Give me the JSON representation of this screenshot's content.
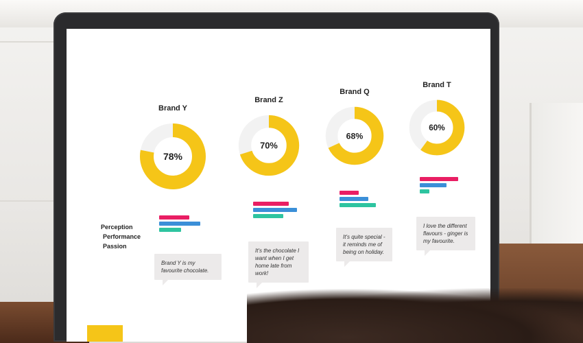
{
  "colors": {
    "accent": "#f5c518",
    "track": "#f2f2f2",
    "perception": "#e91e63",
    "performance": "#3b8fd8",
    "passion": "#2ec4a0"
  },
  "legend": [
    "Perception",
    "Performance",
    "Passion"
  ],
  "brands": [
    {
      "name": "Brand Y",
      "percent_label": "78%",
      "percent": 78,
      "bars": [
        0.55,
        0.75,
        0.4
      ],
      "quote": "Brand Y is my favourite chocolate."
    },
    {
      "name": "Brand Z",
      "percent_label": "70%",
      "percent": 70,
      "bars": [
        0.65,
        0.8,
        0.55
      ],
      "quote": "It's the chocolate I want when I get home late from work!"
    },
    {
      "name": "Brand Q",
      "percent_label": "68%",
      "percent": 68,
      "bars": [
        0.4,
        0.6,
        0.75
      ],
      "quote": "It's quite special - it reminds me of being on holiday."
    },
    {
      "name": "Brand T",
      "percent_label": "60%",
      "percent": 60,
      "bars": [
        0.8,
        0.55,
        0.2
      ],
      "quote": "I love the different flavours - ginger is my favourite."
    }
  ]
}
